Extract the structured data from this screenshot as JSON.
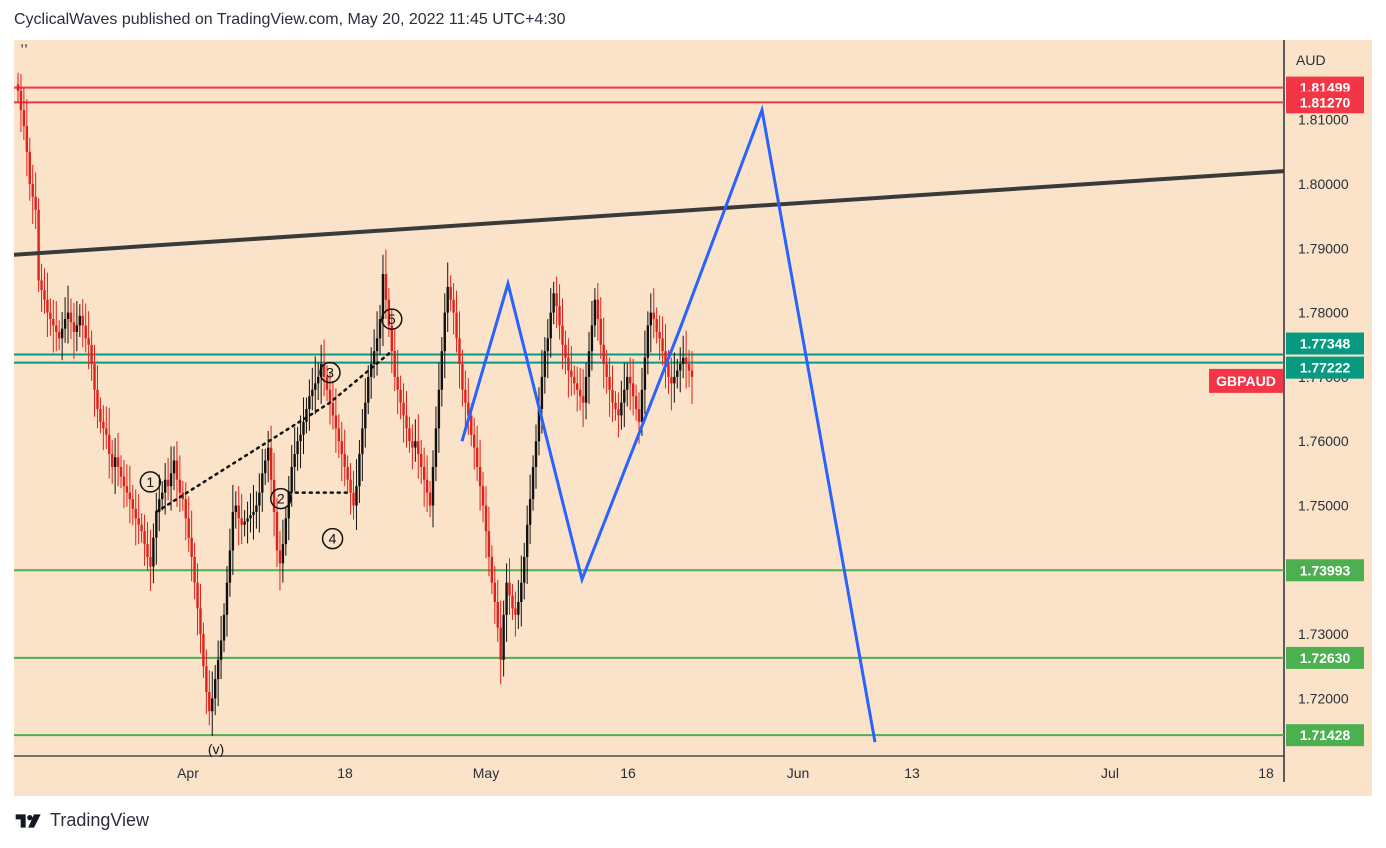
{
  "header": {
    "text": "CyclicalWaves published on TradingView.com, May 20, 2022 11:45 UTC+4:30"
  },
  "footer": {
    "brand": "TradingView"
  },
  "colors": {
    "background": "#fbe3c9",
    "red_level": "#f23645",
    "green_level": "#4caf50",
    "teal_level": "#089981",
    "trendline": "#3a3a3a",
    "projection": "#2962ff",
    "candle_up": "#111111",
    "candle_down": "#e0201a"
  },
  "chart_data": {
    "type": "line",
    "symbol": "GBPAUD",
    "currency": "AUD",
    "y_ticks": [
      "1.72000",
      "1.73000",
      "1.75000",
      "1.76000",
      "1.77000",
      "1.78000",
      "1.79000",
      "1.80000",
      "1.81000"
    ],
    "x_ticks": [
      "Apr",
      "18",
      "May",
      "16",
      "Jun",
      "13",
      "Jul",
      "18"
    ],
    "ylim": [
      1.7132,
      1.8242
    ],
    "price_levels": [
      {
        "value": 1.81499,
        "label": "1.81499",
        "kind": "resistance"
      },
      {
        "value": 1.8127,
        "label": "1.81270",
        "kind": "resistance"
      },
      {
        "value": 1.77348,
        "label": "1.77348",
        "kind": "pivot"
      },
      {
        "value": 1.77222,
        "label": "1.77222",
        "kind": "pivot"
      },
      {
        "value": 1.73993,
        "label": "1.73993",
        "kind": "support"
      },
      {
        "value": 1.7263,
        "label": "1.72630",
        "kind": "support"
      },
      {
        "value": 1.71428,
        "label": "1.71428",
        "kind": "support"
      }
    ],
    "last_price_label": "GBPAUD",
    "trendline": {
      "from": 1.789,
      "to": 1.802
    },
    "wave_labels": [
      "1",
      "2",
      "3",
      "4",
      "5"
    ],
    "bottom_label": "(v)",
    "top_left_label": ",,",
    "projection_path": [
      1.76,
      1.7845,
      1.7385,
      1.7775,
      1.8115,
      1.7132
    ],
    "price_series": [
      1.8145,
      1.8115,
      1.809,
      1.805,
      1.8,
      1.798,
      1.796,
      1.785,
      1.7835,
      1.782,
      1.78,
      1.779,
      1.778,
      1.777,
      1.776,
      1.7775,
      1.779,
      1.78,
      1.7785,
      1.777,
      1.778,
      1.7795,
      1.778,
      1.776,
      1.775,
      1.772,
      1.768,
      1.765,
      1.763,
      1.762,
      1.761,
      1.758,
      1.756,
      1.7575,
      1.756,
      1.7545,
      1.753,
      1.752,
      1.751,
      1.7495,
      1.748,
      1.747,
      1.746,
      1.744,
      1.742,
      1.7405,
      1.745,
      1.749,
      1.751,
      1.752,
      1.754,
      1.753,
      1.755,
      1.757,
      1.754,
      1.752,
      1.751,
      1.748,
      1.745,
      1.742,
      1.738,
      1.734,
      1.73,
      1.725,
      1.721,
      1.718,
      1.72,
      1.723,
      1.726,
      1.729,
      1.733,
      1.738,
      1.743,
      1.749,
      1.75,
      1.748,
      1.747,
      1.7475,
      1.748,
      1.7485,
      1.749,
      1.75,
      1.752,
      1.755,
      1.757,
      1.759,
      1.754,
      1.749,
      1.743,
      1.741,
      1.744,
      1.748,
      1.752,
      1.756,
      1.758,
      1.76,
      1.761,
      1.763,
      1.765,
      1.767,
      1.768,
      1.769,
      1.77,
      1.772,
      1.77,
      1.768,
      1.766,
      1.764,
      1.762,
      1.76,
      1.758,
      1.756,
      1.754,
      1.752,
      1.75,
      1.753,
      1.758,
      1.762,
      1.766,
      1.77,
      1.772,
      1.774,
      1.776,
      1.779,
      1.786,
      1.782,
      1.778,
      1.774,
      1.77,
      1.768,
      1.766,
      1.764,
      1.762,
      1.76,
      1.759,
      1.76,
      1.758,
      1.756,
      1.754,
      1.752,
      1.75,
      1.756,
      1.762,
      1.768,
      1.774,
      1.78,
      1.784,
      1.782,
      1.78,
      1.776,
      1.772,
      1.768,
      1.766,
      1.764,
      1.761,
      1.759,
      1.756,
      1.753,
      1.75,
      1.746,
      1.742,
      1.738,
      1.735,
      1.731,
      1.726,
      1.733,
      1.738,
      1.736,
      1.734,
      1.733,
      1.735,
      1.738,
      1.742,
      1.747,
      1.751,
      1.756,
      1.76,
      1.765,
      1.77,
      1.774,
      1.776,
      1.78,
      1.783,
      1.781,
      1.778,
      1.775,
      1.773,
      1.771,
      1.77,
      1.769,
      1.768,
      1.767,
      1.766,
      1.77,
      1.774,
      1.778,
      1.782,
      1.779,
      1.775,
      1.772,
      1.77,
      1.768,
      1.766,
      1.765,
      1.764,
      1.766,
      1.768,
      1.77,
      1.769,
      1.767,
      1.765,
      1.763,
      1.768,
      1.773,
      1.778,
      1.78,
      1.779,
      1.777,
      1.776,
      1.774,
      1.772,
      1.77,
      1.769,
      1.77,
      1.771,
      1.772,
      1.773,
      1.772,
      1.771,
      1.77
    ]
  }
}
